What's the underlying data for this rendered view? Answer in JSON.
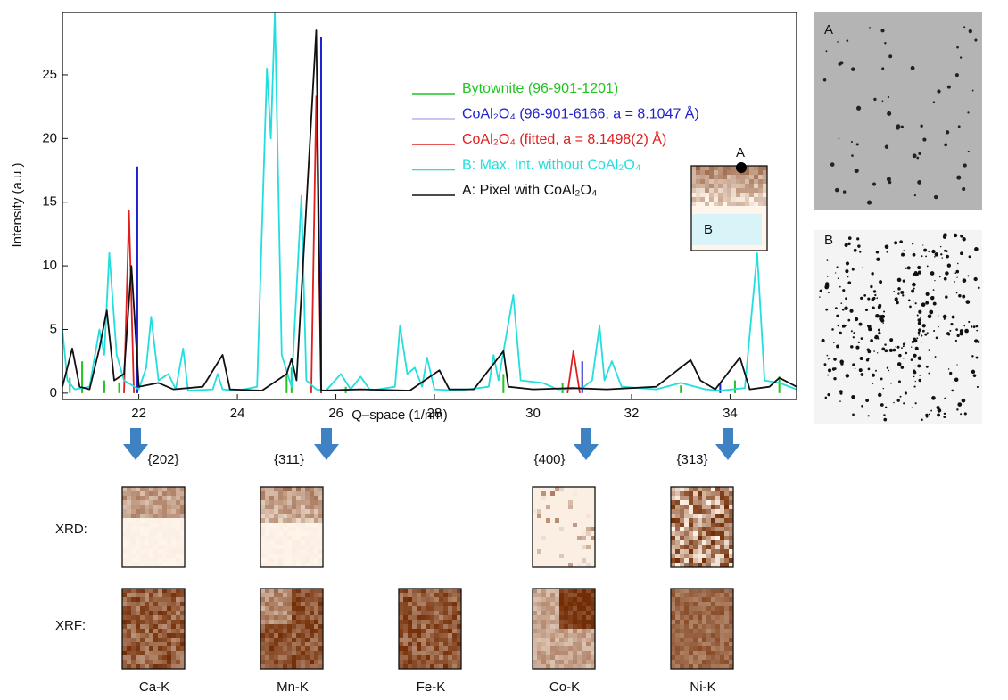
{
  "chart_data": {
    "type": "line",
    "x_label": "Q–space (1/nm)",
    "y_label": "Intensity (a.u.)",
    "xlim": [
      20.45,
      35.35
    ],
    "ylim": [
      -0.5,
      29.9
    ],
    "xticks": [
      22,
      24,
      26,
      28,
      30,
      32,
      34
    ],
    "yticks": [
      0,
      5,
      10,
      15,
      20,
      25
    ],
    "series": [
      {
        "name": "Bytownite (96-901-1201)",
        "color": "#22c322",
        "style": "stick",
        "x": [
          20.6,
          20.85,
          21.3,
          21.6,
          25.0,
          25.1,
          26.2,
          29.4,
          30.6,
          33.0,
          34.1,
          35.0
        ],
        "values": [
          1.2,
          2.5,
          1,
          0.8,
          1.5,
          2,
          0.5,
          1.5,
          0.8,
          0.6,
          1,
          1.3
        ]
      },
      {
        "name": "CoAl₂O₄ (96-901-6166, a = 8.1047 Å)",
        "color": "#2020d0",
        "style": "stick",
        "x": [
          21.97,
          25.7,
          31.0,
          33.8
        ],
        "values": [
          17.8,
          28,
          2.5,
          0.8
        ]
      },
      {
        "name": "CoAl₂O₄ (fitted, a = 8.1498(2) Å)",
        "color": "#e01e1e",
        "style": "line",
        "x": [
          21.7,
          21.8,
          21.9,
          22.0,
          25.5,
          25.6,
          25.7,
          26.0,
          30.7,
          30.82,
          30.95
        ],
        "values": [
          0,
          14.3,
          0,
          null,
          0,
          23.3,
          0,
          null,
          0,
          3.3,
          0
        ]
      },
      {
        "name": "B: Max. Int. without CoAl₂O₄",
        "color": "#22dede",
        "style": "line",
        "x": [
          20.45,
          20.55,
          20.7,
          21.0,
          21.2,
          21.3,
          21.4,
          21.55,
          21.7,
          22.0,
          22.15,
          22.25,
          22.4,
          22.6,
          22.75,
          22.9,
          23.0,
          23.5,
          23.6,
          23.7,
          24.0,
          24.4,
          24.6,
          24.68,
          24.76,
          24.9,
          25.1,
          25.3,
          25.4,
          25.6,
          25.8,
          26.1,
          26.3,
          26.5,
          26.7,
          27.2,
          27.3,
          27.45,
          27.6,
          27.75,
          27.85,
          28.0,
          28.5,
          29.1,
          29.2,
          29.3,
          29.6,
          29.75,
          30.2,
          30.5,
          31.0,
          31.2,
          31.35,
          31.45,
          31.6,
          31.8,
          32.5,
          33.0,
          33.5,
          33.8,
          34.3,
          34.55,
          34.7,
          35.0,
          35.35
        ],
        "values": [
          5,
          1,
          0.3,
          0.5,
          5,
          3,
          11,
          3,
          1,
          0.3,
          2,
          6,
          1,
          1.5,
          0.3,
          3.5,
          0.2,
          0.3,
          1.5,
          0.3,
          0.2,
          0.5,
          25.5,
          20,
          29.9,
          3,
          0.5,
          15.5,
          1,
          0.3,
          0.2,
          1.5,
          0.3,
          1.3,
          0.2,
          0.5,
          5.3,
          1.5,
          2,
          0.5,
          2.8,
          0.3,
          0.2,
          0.5,
          3,
          1,
          7.7,
          1,
          0.8,
          0.3,
          0.4,
          1,
          5.3,
          1,
          2.5,
          0.5,
          0.3,
          0.8,
          0.3,
          0.2,
          0.4,
          11,
          1,
          0.8,
          0.3
        ]
      },
      {
        "name": "A: Pixel with CoAl₂O₄",
        "color": "#111111",
        "style": "line",
        "x": [
          20.45,
          20.65,
          20.8,
          21.0,
          21.2,
          21.35,
          21.5,
          21.7,
          21.85,
          22.0,
          22.4,
          22.7,
          23.3,
          23.7,
          23.85,
          24.5,
          25.0,
          25.1,
          25.2,
          25.6,
          25.7,
          26.5,
          27.5,
          28.1,
          28.3,
          28.8,
          29.4,
          29.5,
          30.0,
          30.8,
          31.5,
          32.5,
          33.2,
          33.4,
          33.7,
          34.2,
          34.4,
          34.8,
          35.0,
          35.35
        ],
        "values": [
          0.5,
          3.5,
          0.5,
          0.3,
          3.5,
          6.5,
          1,
          1.5,
          10,
          0.5,
          0.8,
          0.3,
          0.5,
          3,
          0.3,
          0.2,
          1.5,
          2.7,
          1,
          28.5,
          0.2,
          0.3,
          0.2,
          1.8,
          0.3,
          0.3,
          3.3,
          0.5,
          0.3,
          0.4,
          0.3,
          0.5,
          2.6,
          1,
          0.3,
          2.8,
          0.3,
          0.5,
          1.2,
          0.5
        ]
      }
    ]
  },
  "inset": {
    "labels": [
      "A",
      "B"
    ]
  },
  "side_panels": [
    "A",
    "B"
  ],
  "reflections": [
    "{202}",
    "{311}",
    "{400}",
    "{313}"
  ],
  "row_labels": [
    "XRD:",
    "XRF:"
  ],
  "elements": [
    "Ca-K",
    "Mn-K",
    "Fe-K",
    "Co-K",
    "Ni-K"
  ]
}
